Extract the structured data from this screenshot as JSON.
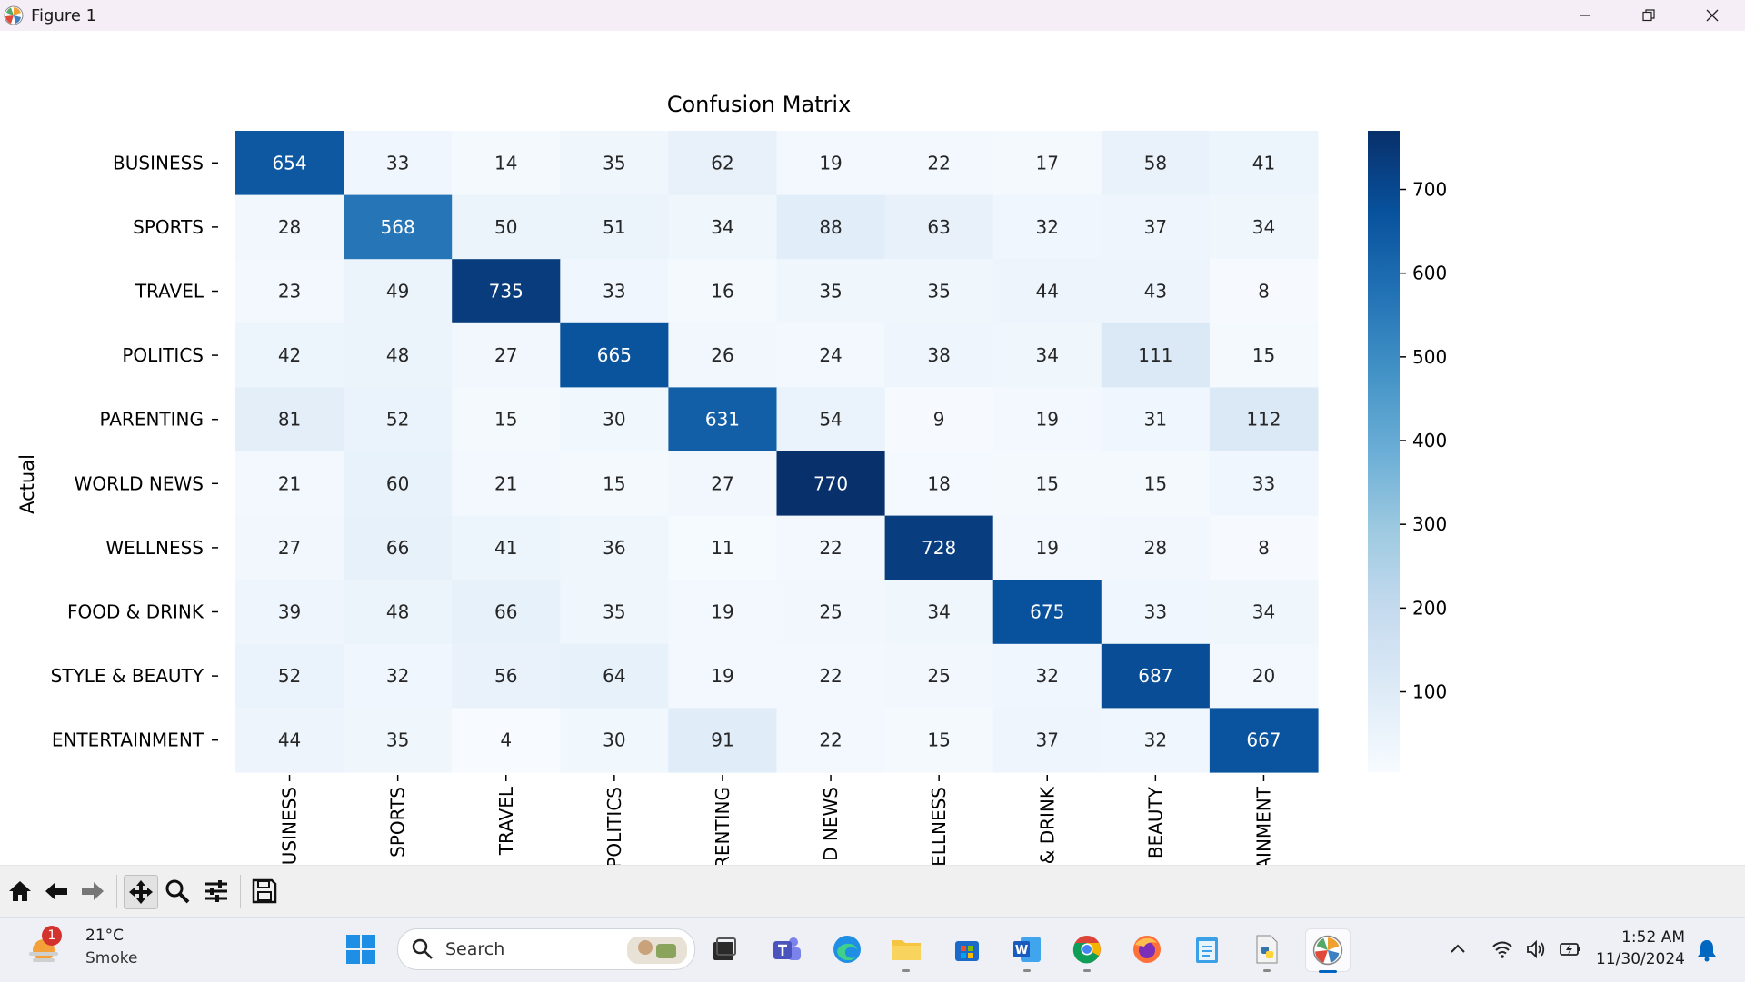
{
  "window": {
    "title": "Figure 1"
  },
  "chart_data": {
    "type": "heatmap",
    "title": "Confusion Matrix",
    "ylabel": "Actual",
    "xlabel": "",
    "rows": [
      "BUSINESS",
      "SPORTS",
      "TRAVEL",
      "POLITICS",
      "PARENTING",
      "WORLD NEWS",
      "WELLNESS",
      "FOOD & DRINK",
      "STYLE & BEAUTY",
      "ENTERTAINMENT"
    ],
    "columns_visible": [
      "USINESS",
      "SPORTS",
      "TRAVEL",
      "POLITICS",
      "RENTING",
      "D NEWS",
      "ELLNESS",
      "& DRINK",
      "BEAUTY",
      "AINMENT"
    ],
    "values": [
      [
        654,
        33,
        14,
        35,
        62,
        19,
        22,
        17,
        58,
        41
      ],
      [
        28,
        568,
        50,
        51,
        34,
        88,
        63,
        32,
        37,
        34
      ],
      [
        23,
        49,
        735,
        33,
        16,
        35,
        35,
        44,
        43,
        8
      ],
      [
        42,
        48,
        27,
        665,
        26,
        24,
        38,
        34,
        111,
        15
      ],
      [
        81,
        52,
        15,
        30,
        631,
        54,
        9,
        19,
        31,
        112
      ],
      [
        21,
        60,
        21,
        15,
        27,
        770,
        18,
        15,
        15,
        33
      ],
      [
        27,
        66,
        41,
        36,
        11,
        22,
        728,
        19,
        28,
        8
      ],
      [
        39,
        48,
        66,
        35,
        19,
        25,
        34,
        675,
        33,
        34
      ],
      [
        52,
        32,
        56,
        64,
        19,
        22,
        25,
        32,
        687,
        20
      ],
      [
        44,
        35,
        4,
        30,
        91,
        22,
        15,
        37,
        32,
        667
      ]
    ],
    "colorbar": {
      "ticks": [
        100,
        200,
        300,
        400,
        500,
        600,
        700
      ],
      "range": [
        4,
        770
      ],
      "colormap": "Blues"
    }
  },
  "toolbar": {
    "buttons": [
      "home-icon",
      "back-arrow-icon",
      "forward-arrow-icon",
      "pan-icon",
      "zoom-icon",
      "configure-subplots-icon",
      "save-icon"
    ]
  },
  "taskbar": {
    "weather": {
      "temperature": "21°C",
      "condition": "Smoke",
      "badge": "1"
    },
    "search_placeholder": "Search",
    "time": "1:52 AM",
    "date": "11/30/2024"
  },
  "colors": {
    "titlebar": "#f6eef6",
    "toolbar": "#f0f0f0",
    "taskbar": "#eef0f5",
    "accent": "#0067c0"
  }
}
